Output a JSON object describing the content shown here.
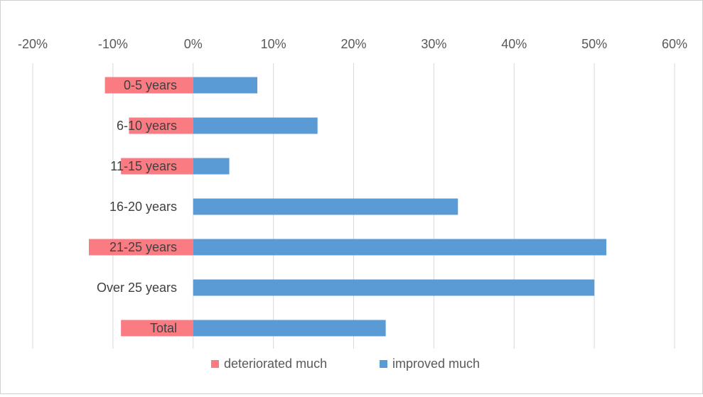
{
  "chart_data": {
    "type": "bar",
    "orientation": "horizontal",
    "stacked": false,
    "categories": [
      "0-5 years",
      "6-10 years",
      "11-15 years",
      "16-20 years",
      "21-25 years",
      "Over 25 years",
      "Total"
    ],
    "series": [
      {
        "name": "deteriorated much",
        "color": "#fb7b83",
        "values": [
          -11,
          -8,
          -9,
          0,
          -13,
          0,
          -9
        ]
      },
      {
        "name": "improved much",
        "color": "#5b9bd5",
        "values": [
          8,
          15.5,
          4.5,
          33,
          51.5,
          50,
          24
        ]
      }
    ],
    "x_axis": {
      "min": -20,
      "max": 60,
      "ticks": [
        -20,
        -10,
        0,
        10,
        20,
        30,
        40,
        50,
        60
      ],
      "tick_labels": [
        "-20%",
        "-10%",
        "0%",
        "10%",
        "20%",
        "30%",
        "40%",
        "50%",
        "60%"
      ],
      "position": "top",
      "unit": "%"
    },
    "grid": "vertical",
    "legend_position": "bottom",
    "title": "",
    "xlabel": "",
    "ylabel": ""
  }
}
